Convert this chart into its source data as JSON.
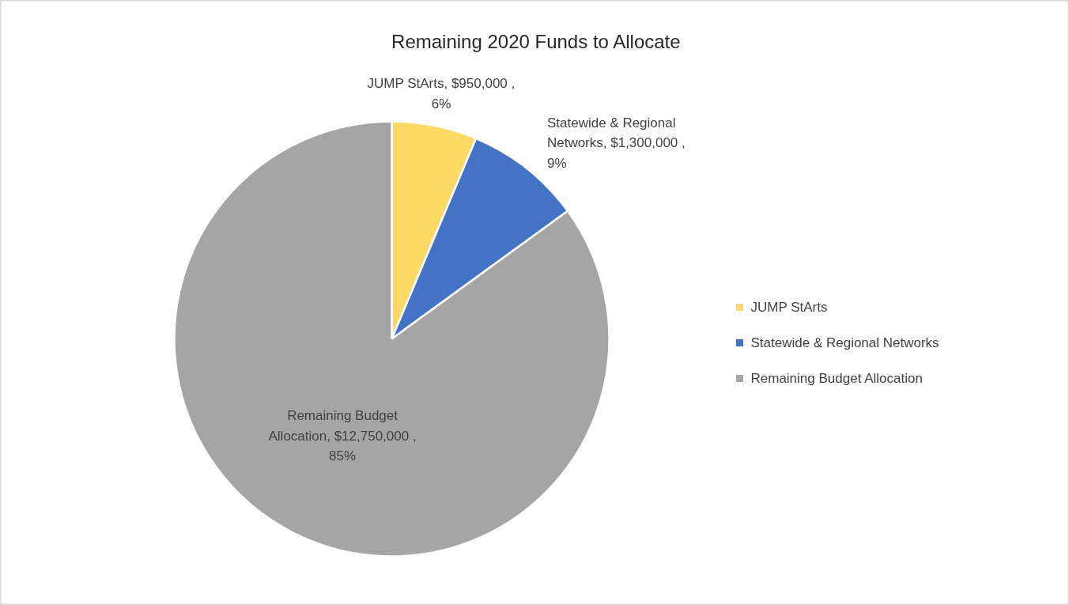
{
  "chart_data": {
    "type": "pie",
    "title": "Remaining 2020 Funds to Allocate",
    "categories": [
      "JUMP StArts",
      "Statewide & Regional Networks",
      "Remaining Budget Allocation"
    ],
    "values": [
      950000,
      1300000,
      12750000
    ],
    "colors": [
      "#ffd966",
      "#4472c4",
      "#a5a5a5"
    ],
    "value_labels": [
      "JUMP StArts, $950,000 ,\n6%",
      "Statewide & Regional\nNetworks, $1,300,000 ,\n9%",
      "Remaining Budget\nAllocation, $12,750,000 ,\n85%"
    ],
    "legend": "right"
  }
}
